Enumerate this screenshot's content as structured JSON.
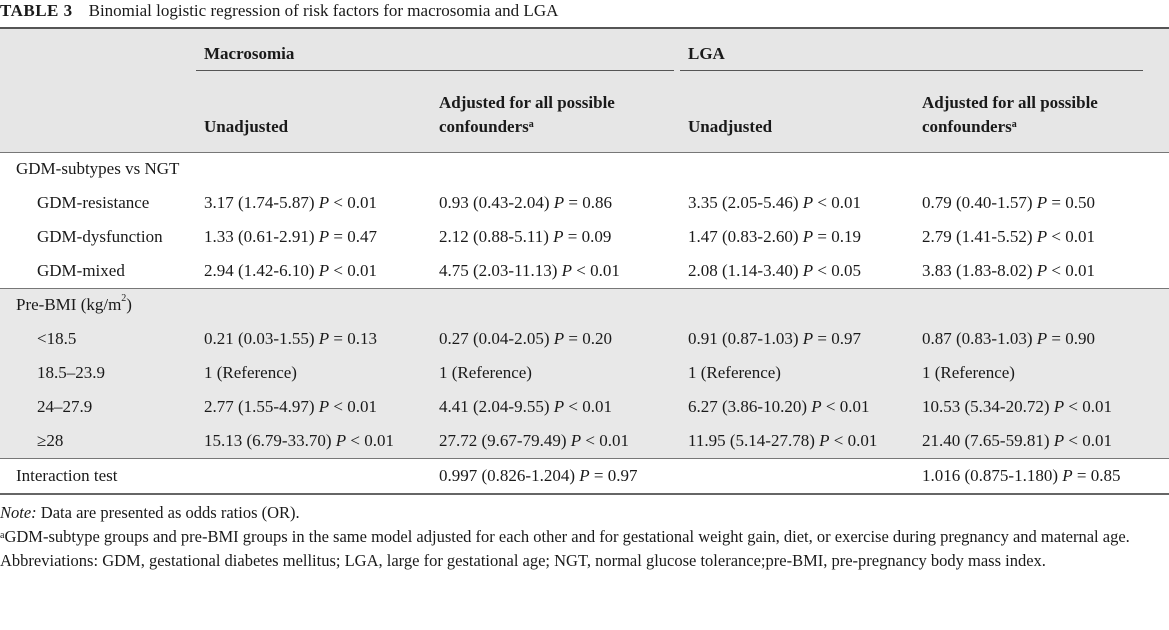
{
  "caption": {
    "label": "TABLE 3",
    "title": "Binomial logistic regression of risk factors for macrosomia and LGA"
  },
  "header": {
    "group1": "Macrosomia",
    "group2": "LGA",
    "unadjusted": "Unadjusted",
    "adjusted_line1": "Adjusted for all possible",
    "adjusted_line2": "confounders",
    "adjusted_sup": "a"
  },
  "sections": [
    {
      "title": "GDM-subtypes vs NGT",
      "rows": [
        {
          "label": "GDM-resistance",
          "m_unadj": "3.17 (1.74-5.87)",
          "m_unadj_p": "< 0.01",
          "m_adj": "0.93 (0.43-2.04)",
          "m_adj_p": "= 0.86",
          "l_unadj": "3.35 (2.05-5.46)",
          "l_unadj_p": "< 0.01",
          "l_adj": "0.79 (0.40-1.57)",
          "l_adj_p": "= 0.50"
        },
        {
          "label": "GDM-dysfunction",
          "m_unadj": "1.33 (0.61-2.91)",
          "m_unadj_p": "= 0.47",
          "m_adj": "2.12 (0.88-5.11)",
          "m_adj_p": "= 0.09",
          "l_unadj": "1.47 (0.83-2.60)",
          "l_unadj_p": "= 0.19",
          "l_adj": "2.79 (1.41-5.52)",
          "l_adj_p": "< 0.01"
        },
        {
          "label": "GDM-mixed",
          "m_unadj": "2.94 (1.42-6.10)",
          "m_unadj_p": "< 0.01",
          "m_adj": "4.75 (2.03-11.13)",
          "m_adj_p": "< 0.01",
          "l_unadj": "2.08 (1.14-3.40)",
          "l_unadj_p": "< 0.05",
          "l_adj": "3.83 (1.83-8.02)",
          "l_adj_p": "< 0.01"
        }
      ]
    },
    {
      "title_main": "Pre-BMI (kg/m",
      "title_sup": "2",
      "title_end": ")",
      "rows": [
        {
          "label": "<18.5",
          "m_unadj": "0.21 (0.03-1.55)",
          "m_unadj_p": "= 0.13",
          "m_adj": "0.27 (0.04-2.05)",
          "m_adj_p": "= 0.20",
          "l_unadj": "0.91 (0.87-1.03)",
          "l_unadj_p": "= 0.97",
          "l_adj": "0.87 (0.83-1.03)",
          "l_adj_p": "= 0.90"
        },
        {
          "label": "18.5–23.9",
          "m_unadj": "1 (Reference)",
          "m_unadj_p": "",
          "m_adj": "1 (Reference)",
          "m_adj_p": "",
          "l_unadj": "1 (Reference)",
          "l_unadj_p": "",
          "l_adj": "1 (Reference)",
          "l_adj_p": ""
        },
        {
          "label": "24–27.9",
          "m_unadj": "2.77 (1.55-4.97)",
          "m_unadj_p": "< 0.01",
          "m_adj": "4.41 (2.04-9.55)",
          "m_adj_p": "< 0.01",
          "l_unadj": "6.27 (3.86-10.20)",
          "l_unadj_p": "< 0.01",
          "l_adj": "10.53 (5.34-20.72)",
          "l_adj_p": "< 0.01"
        },
        {
          "label": "≥28",
          "m_unadj": "15.13 (6.79-33.70)",
          "m_unadj_p": "< 0.01",
          "m_adj": "27.72 (9.67-79.49)",
          "m_adj_p": "< 0.01",
          "l_unadj": "11.95 (5.14-27.78)",
          "l_unadj_p": "< 0.01",
          "l_adj": "21.40 (7.65-59.81)",
          "l_adj_p": "< 0.01"
        }
      ]
    }
  ],
  "interaction": {
    "label": "Interaction test",
    "m_adj": "0.997 (0.826-1.204)",
    "m_adj_p": "= 0.97",
    "l_adj": "1.016 (0.875-1.180)",
    "l_adj_p": "= 0.85"
  },
  "p_symbol": "P",
  "notes": {
    "note_label": "Note:",
    "note_text": " Data are presented as odds ratios (OR).",
    "footnote_sup": "a",
    "footnote_text": "GDM-subtype groups and pre-BMI groups in the same model adjusted for each other and for gestational weight gain, diet, or exercise during pregnancy and maternal age.",
    "abbreviations": "Abbreviations: GDM, gestational diabetes mellitus; LGA, large for gestational age; NGT, normal glucose tolerance;pre-BMI, pre-pregnancy body mass index."
  }
}
